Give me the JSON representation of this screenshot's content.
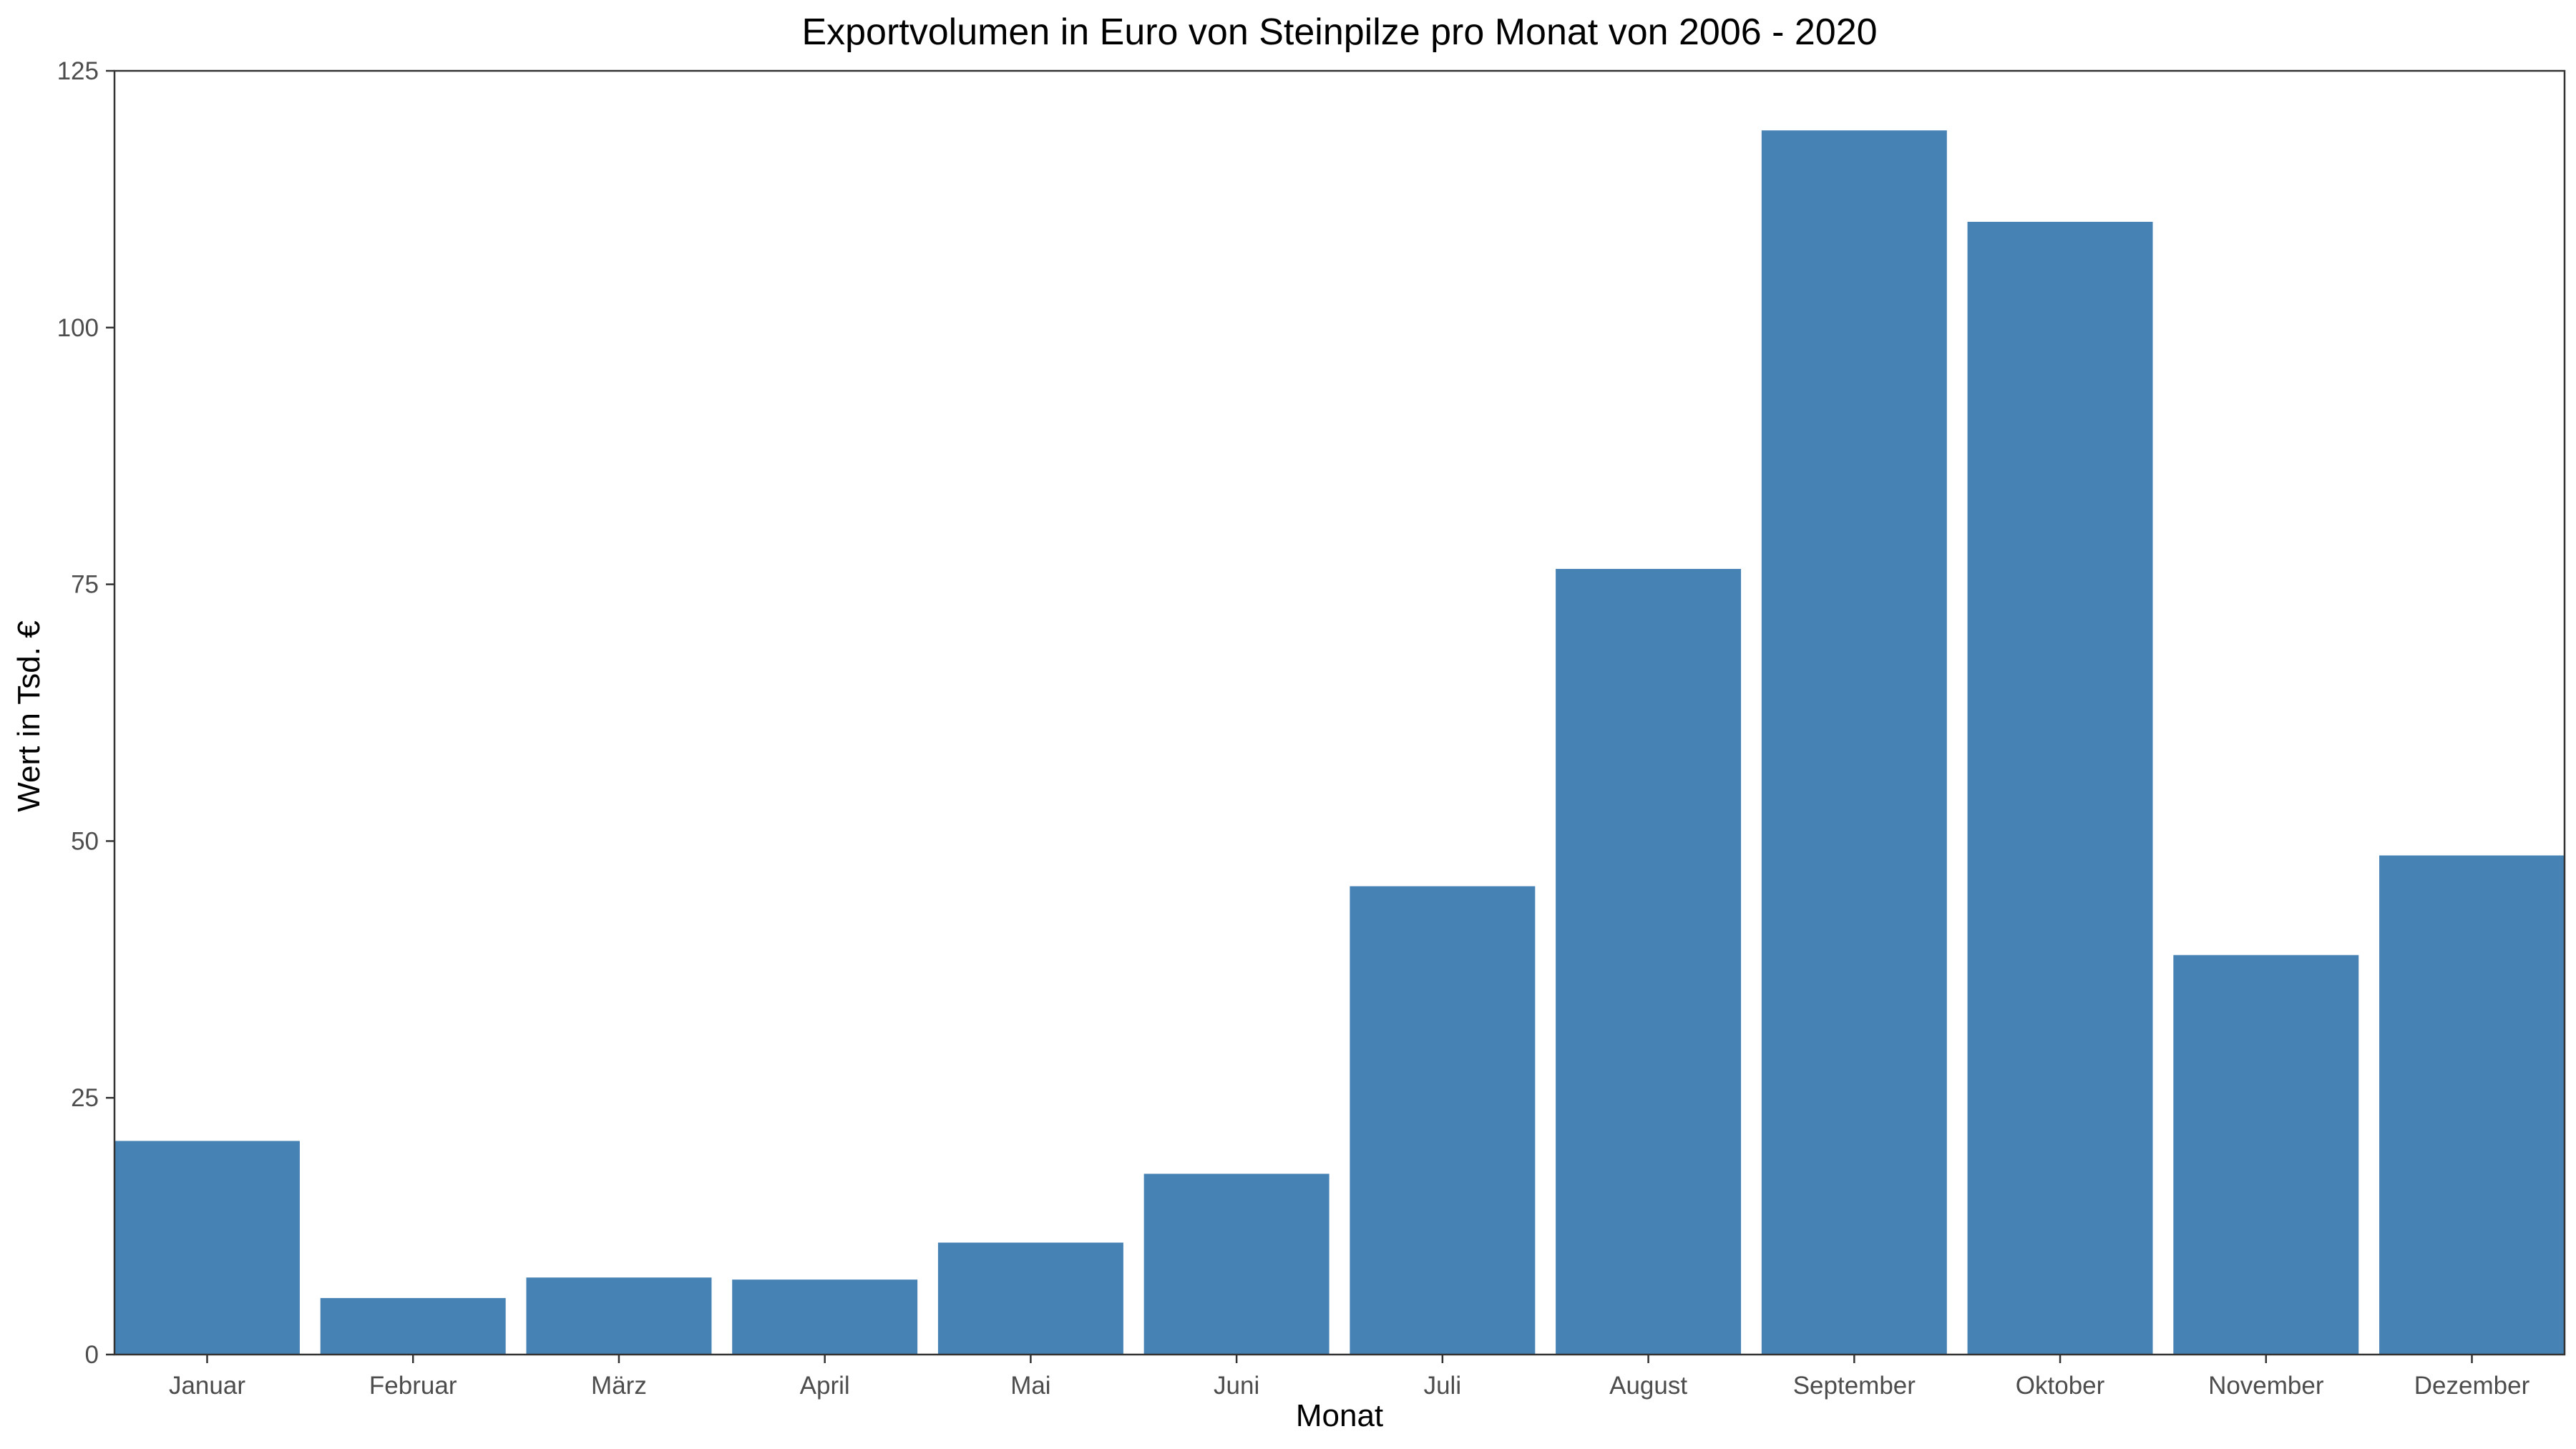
{
  "chart_data": {
    "type": "bar",
    "title": "Exportvolumen in Euro von Steinpilze pro Monat von 2006 - 2020",
    "xlabel": "Monat",
    "ylabel": "Wert in Tsd. €",
    "categories": [
      "Januar",
      "Februar",
      "März",
      "April",
      "Mai",
      "Juni",
      "Juli",
      "August",
      "September",
      "Oktober",
      "November",
      "Dezember"
    ],
    "values": [
      20.8,
      5.5,
      7.5,
      7.3,
      10.9,
      17.6,
      45.6,
      76.5,
      119.2,
      110.3,
      38.9,
      48.6
    ],
    "ylim": [
      0,
      125
    ],
    "yticks": [
      0,
      25,
      50,
      75,
      100,
      125
    ],
    "grid": false,
    "bar_color": "#4682b4"
  }
}
